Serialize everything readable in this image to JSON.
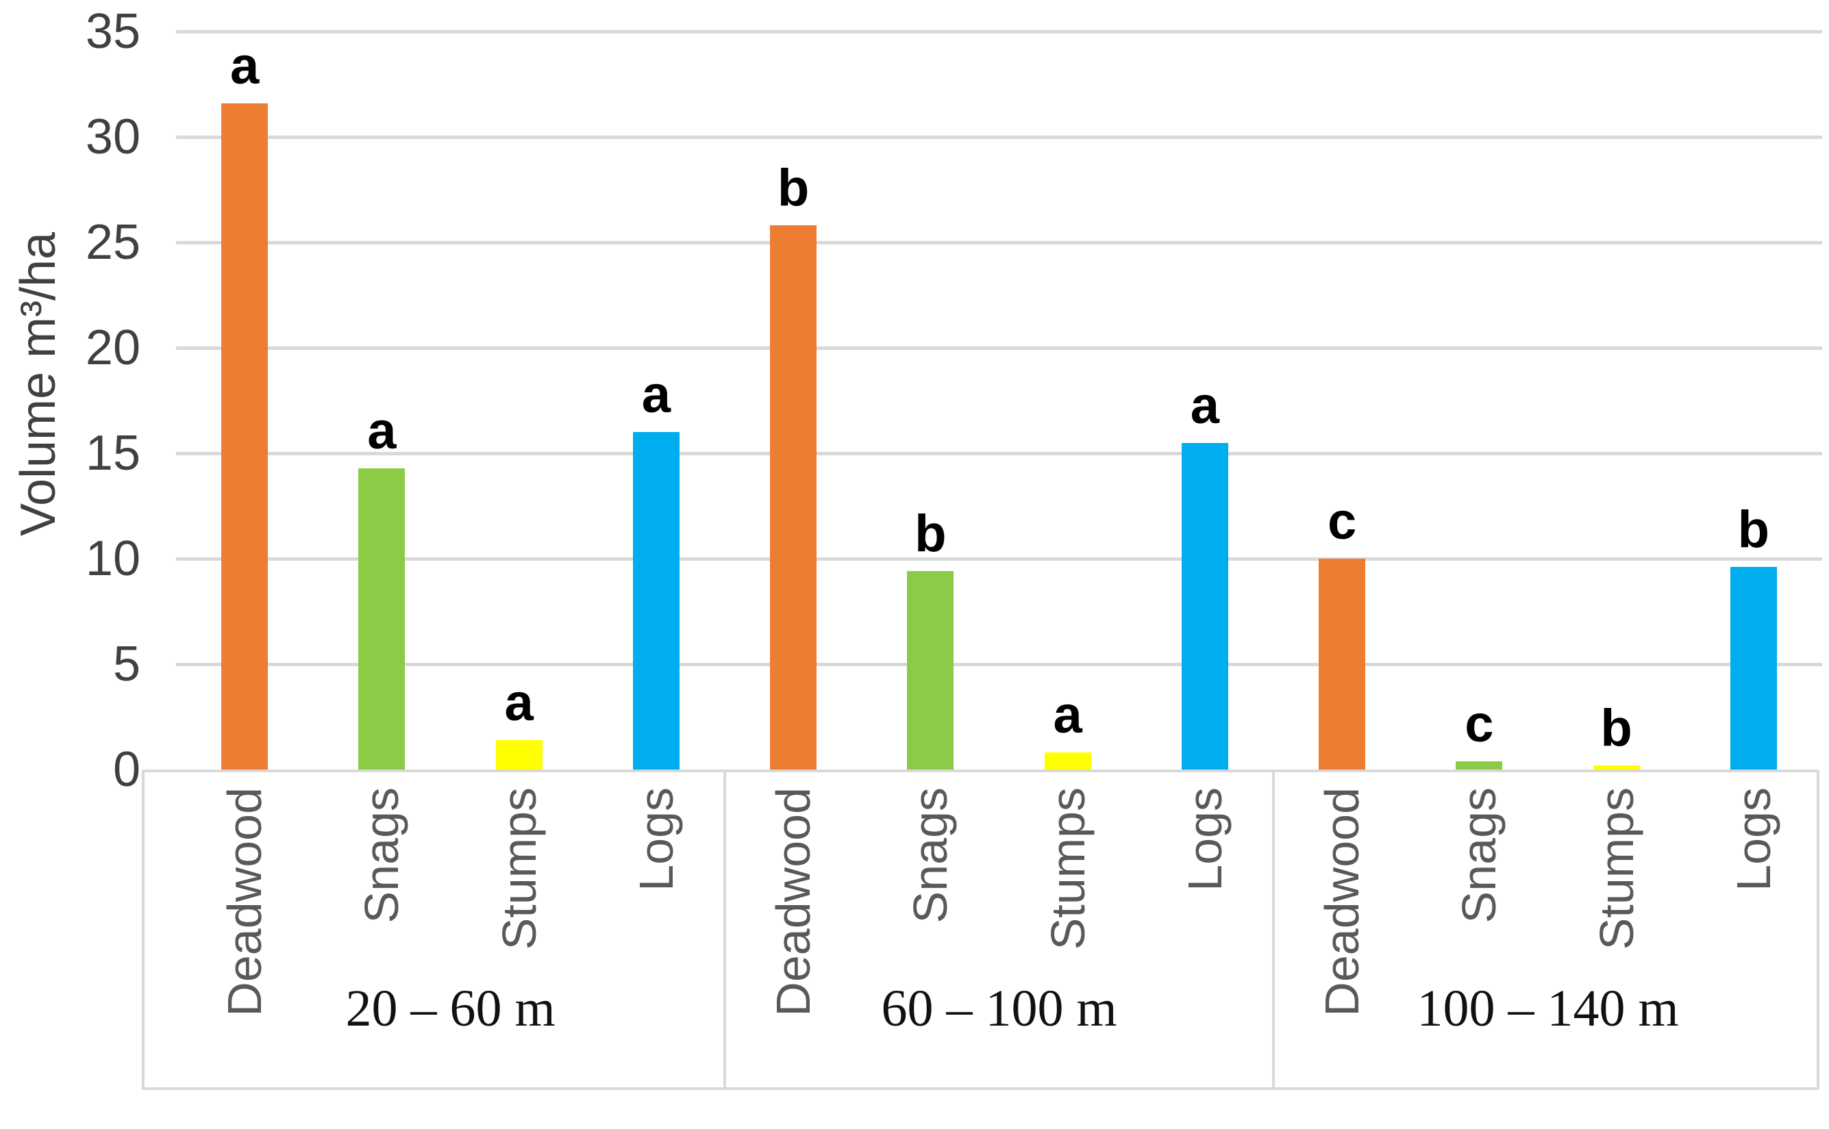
{
  "chart_data": {
    "type": "bar",
    "title": "",
    "ylabel": "Volume m³/ha",
    "xlabel": "",
    "ylim": [
      0,
      35
    ],
    "ytick_interval": 5,
    "ytick_labels": [
      "0",
      "5",
      "10",
      "15",
      "20",
      "25",
      "30",
      "35"
    ],
    "grid": true,
    "legend_position": "none",
    "bar_colors": {
      "Deadwood": "#ED7D31",
      "Snags": "#8CCB45",
      "Stumps": "#FFFF00",
      "Logs": "#00AEEF"
    },
    "accent_colors": {
      "gridline": "#D9D9D9",
      "tick_text": "#404040",
      "category_text": "#595959",
      "group_text": "#111111",
      "letter_text": "#000000"
    },
    "groups": [
      {
        "label": "20 – 60 m",
        "bars": [
          {
            "category": "Deadwood",
            "value": 31.6,
            "sig_letter": "a"
          },
          {
            "category": "Snags",
            "value": 14.3,
            "sig_letter": "a"
          },
          {
            "category": "Stumps",
            "value": 1.4,
            "sig_letter": "a"
          },
          {
            "category": "Logs",
            "value": 16.0,
            "sig_letter": "a"
          }
        ]
      },
      {
        "label": "60 – 100 m",
        "bars": [
          {
            "category": "Deadwood",
            "value": 25.8,
            "sig_letter": "b"
          },
          {
            "category": "Snags",
            "value": 9.4,
            "sig_letter": "b"
          },
          {
            "category": "Stumps",
            "value": 0.8,
            "sig_letter": "a"
          },
          {
            "category": "Logs",
            "value": 15.5,
            "sig_letter": "a"
          }
        ]
      },
      {
        "label": "100 – 140 m",
        "bars": [
          {
            "category": "Deadwood",
            "value": 10.0,
            "sig_letter": "c"
          },
          {
            "category": "Snags",
            "value": 0.4,
            "sig_letter": "c"
          },
          {
            "category": "Stumps",
            "value": 0.2,
            "sig_letter": "b"
          },
          {
            "category": "Logs",
            "value": 9.6,
            "sig_letter": "b"
          }
        ]
      }
    ]
  }
}
